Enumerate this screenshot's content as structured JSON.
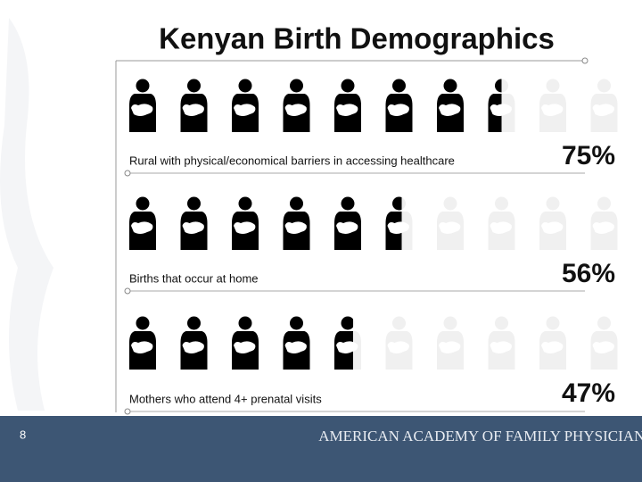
{
  "chart_data": {
    "type": "pictograph",
    "title": "Kenyan Birth Demographics",
    "categories": [
      "Rural with physical/economical barriers in accessing healthcare",
      "Births that occur at home",
      "Mothers who attend 4+ prenatal visits"
    ],
    "values": [
      75,
      56,
      47
    ],
    "value_labels": [
      "75%",
      "56%",
      "47%"
    ],
    "xlim": [
      0,
      100
    ],
    "color": "#000000",
    "empty_color": "#f0f0f0"
  },
  "footer": {
    "page_number": "8",
    "organization": "AMERICAN ACADEMY OF FAMILY PHYSICIANS"
  }
}
